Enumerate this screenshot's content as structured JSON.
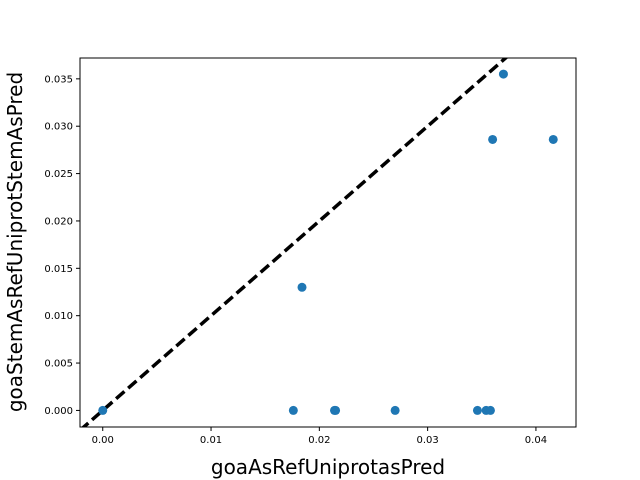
{
  "chart_data": {
    "type": "scatter",
    "title": "",
    "xlabel": "goaAsRefUniprotasPred",
    "ylabel": "goaStemAsRefUniprotStemAsPred",
    "xlim": [
      -0.0021,
      0.0437
    ],
    "ylim": [
      -0.00175,
      0.0372
    ],
    "xticks": [
      0.0,
      0.01,
      0.02,
      0.03,
      0.04
    ],
    "xtick_labels": [
      "0.00",
      "0.01",
      "0.02",
      "0.03",
      "0.04"
    ],
    "yticks": [
      0.0,
      0.005,
      0.01,
      0.015,
      0.02,
      0.025,
      0.03,
      0.035
    ],
    "ytick_labels": [
      "0.000",
      "0.005",
      "0.010",
      "0.015",
      "0.020",
      "0.025",
      "0.030",
      "0.035"
    ],
    "grid": false,
    "marker_color": "#1f77b4",
    "reference_line": {
      "style": "dashed",
      "color": "#000000",
      "slope": 1,
      "intercept": 0
    },
    "series": [
      {
        "x": [
          0.0,
          0.0176,
          0.0184,
          0.0214,
          0.0215,
          0.027,
          0.0346,
          0.0354,
          0.0358,
          0.036,
          0.037,
          0.0416
        ],
        "y": [
          0.0,
          0.0,
          0.013,
          0.0,
          0.0,
          0.0,
          0.0,
          0.0,
          0.0,
          0.0286,
          0.0355,
          0.0286
        ]
      }
    ]
  }
}
